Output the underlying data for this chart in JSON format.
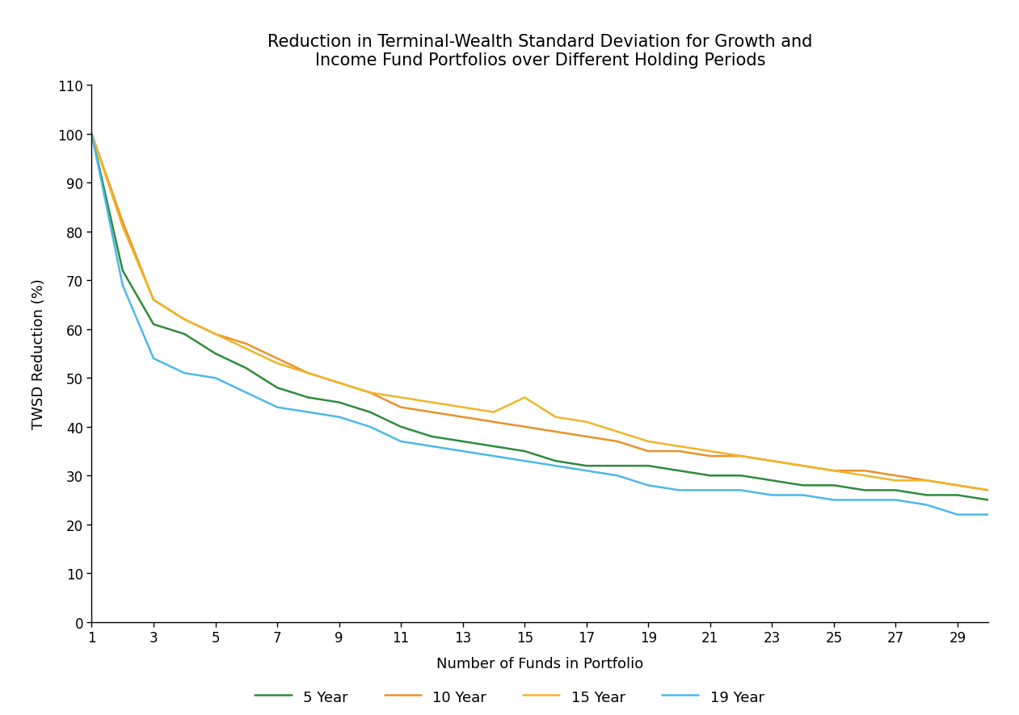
{
  "title": "Reduction in Terminal-Wealth Standard Deviation for Growth and\nIncome Fund Portfolios over Different Holding Periods",
  "xlabel": "Number of Funds in Portfolio",
  "ylabel": "TWSD Reduction (%)",
  "xlim": [
    1,
    30
  ],
  "ylim": [
    0,
    110
  ],
  "xticks": [
    1,
    3,
    5,
    7,
    9,
    11,
    13,
    15,
    17,
    19,
    21,
    23,
    25,
    27,
    29
  ],
  "yticks": [
    0,
    10,
    20,
    30,
    40,
    50,
    60,
    70,
    80,
    90,
    100,
    110
  ],
  "series": {
    "5 Year": {
      "color": "#2e8b3a",
      "x": [
        1,
        2,
        3,
        4,
        5,
        6,
        7,
        8,
        9,
        10,
        11,
        12,
        13,
        14,
        15,
        16,
        17,
        18,
        19,
        20,
        21,
        22,
        23,
        24,
        25,
        26,
        27,
        28,
        29,
        30
      ],
      "y": [
        100,
        72,
        61,
        59,
        55,
        52,
        48,
        46,
        45,
        43,
        40,
        38,
        37,
        36,
        35,
        33,
        32,
        32,
        32,
        31,
        30,
        30,
        29,
        28,
        28,
        27,
        27,
        26,
        26,
        25
      ]
    },
    "10 Year": {
      "color": "#e8922a",
      "x": [
        1,
        2,
        3,
        4,
        5,
        6,
        7,
        8,
        9,
        10,
        11,
        12,
        13,
        14,
        15,
        16,
        17,
        18,
        19,
        20,
        21,
        22,
        23,
        24,
        25,
        26,
        27,
        28,
        29,
        30
      ],
      "y": [
        100,
        82,
        66,
        62,
        59,
        57,
        54,
        51,
        49,
        47,
        44,
        43,
        42,
        41,
        40,
        39,
        38,
        37,
        35,
        35,
        34,
        34,
        33,
        32,
        31,
        31,
        30,
        29,
        28,
        27
      ]
    },
    "15 Year": {
      "color": "#f0b429",
      "x": [
        1,
        2,
        3,
        4,
        5,
        6,
        7,
        8,
        9,
        10,
        11,
        12,
        13,
        14,
        15,
        16,
        17,
        18,
        19,
        20,
        21,
        22,
        23,
        24,
        25,
        26,
        27,
        28,
        29,
        30
      ],
      "y": [
        100,
        81,
        66,
        62,
        59,
        56,
        53,
        51,
        49,
        47,
        46,
        45,
        44,
        43,
        46,
        42,
        41,
        39,
        37,
        36,
        35,
        34,
        33,
        32,
        31,
        30,
        29,
        29,
        28,
        27
      ]
    },
    "19 Year": {
      "color": "#4db8e8",
      "x": [
        1,
        2,
        3,
        4,
        5,
        6,
        7,
        8,
        9,
        10,
        11,
        12,
        13,
        14,
        15,
        16,
        17,
        18,
        19,
        20,
        21,
        22,
        23,
        24,
        25,
        26,
        27,
        28,
        29,
        30
      ],
      "y": [
        100,
        69,
        54,
        51,
        50,
        47,
        44,
        43,
        42,
        40,
        37,
        36,
        35,
        34,
        33,
        32,
        31,
        30,
        28,
        27,
        27,
        27,
        26,
        26,
        25,
        25,
        25,
        24,
        22,
        22
      ]
    }
  },
  "legend_order": [
    "5 Year",
    "10 Year",
    "15 Year",
    "19 Year"
  ],
  "background_color": "#ffffff",
  "title_fontsize": 15,
  "label_fontsize": 13,
  "tick_fontsize": 12,
  "legend_fontsize": 13,
  "linewidth": 1.8
}
